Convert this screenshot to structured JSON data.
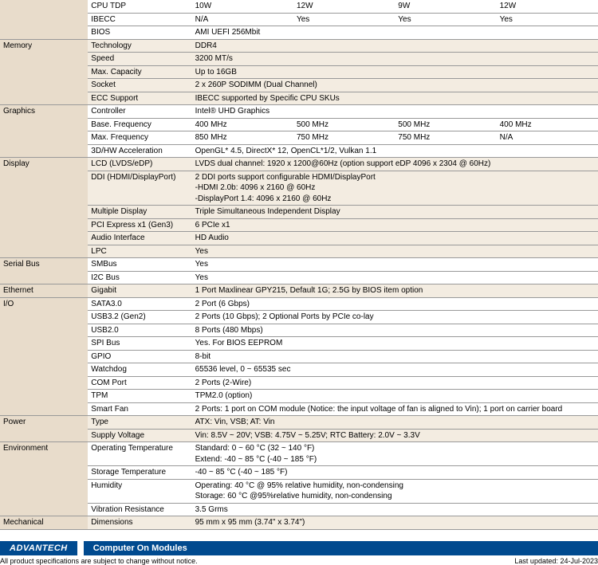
{
  "top_rows": [
    {
      "sub": "CPU TDP",
      "vals": [
        "10W",
        "12W",
        "9W",
        "12W"
      ]
    },
    {
      "sub": "IBECC",
      "vals": [
        "N/A",
        "Yes",
        "Yes",
        "Yes"
      ]
    },
    {
      "sub": "BIOS",
      "span": "AMI UEFI 256Mbit"
    }
  ],
  "memory": {
    "label": "Memory",
    "rows": [
      {
        "sub": "Technology",
        "span": "DDR4"
      },
      {
        "sub": "Speed",
        "span": "3200 MT/s"
      },
      {
        "sub": "Max. Capacity",
        "span": "Up to 16GB"
      },
      {
        "sub": "Socket",
        "span": "2 x 260P SODIMM (Dual Channel)"
      },
      {
        "sub": "ECC Support",
        "span": "IBECC supported by Specific CPU SKUs"
      }
    ]
  },
  "graphics": {
    "label": "Graphics",
    "rows": [
      {
        "sub": "Controller",
        "span": "Intel® UHD Graphics"
      },
      {
        "sub": "Base. Frequency",
        "vals": [
          "400 MHz",
          "500 MHz",
          "500 MHz",
          "400 MHz"
        ]
      },
      {
        "sub": "Max. Frequency",
        "vals": [
          "850 MHz",
          "750 MHz",
          "750 MHz",
          "N/A"
        ]
      },
      {
        "sub": "3D/HW Acceleration",
        "span": "OpenGL* 4.5, DirectX* 12, OpenCL*1/2, Vulkan 1.1"
      }
    ]
  },
  "display": {
    "label": "Display",
    "rows": [
      {
        "sub": "LCD (LVDS/eDP)",
        "span": "LVDS dual channel: 1920 x 1200@60Hz (option support eDP 4096 x 2304 @ 60Hz)"
      },
      {
        "sub": "DDI (HDMI/DisplayPort)",
        "span": "2 DDI ports support configurable HDMI/DisplayPort\n-HDMI 2.0b: 4096 x 2160 @ 60Hz\n-DisplayPort 1.4: 4096 x 2160 @ 60Hz"
      },
      {
        "sub": "Multiple Display",
        "span": "Triple Simultaneous Independent Display"
      },
      {
        "sub": "PCI Express x1 (Gen3)",
        "span": "6 PCIe x1"
      },
      {
        "sub": "Audio Interface",
        "span": "HD Audio"
      },
      {
        "sub": "LPC",
        "span": "Yes"
      }
    ]
  },
  "serial": {
    "label": "Serial Bus",
    "rows": [
      {
        "sub": "SMBus",
        "span": "Yes"
      },
      {
        "sub": "I2C Bus",
        "span": "Yes"
      }
    ]
  },
  "ethernet": {
    "label": "Ethernet",
    "rows": [
      {
        "sub": "Gigabit",
        "span": "1 Port Maxlinear GPY215, Default 1G; 2.5G by BIOS item option"
      }
    ]
  },
  "io": {
    "label": "I/O",
    "rows": [
      {
        "sub": "SATA3.0",
        "span": "2 Port (6 Gbps)"
      },
      {
        "sub": "USB3.2 (Gen2)",
        "span": "2 Ports (10 Gbps); 2 Optional Ports by PCIe co-lay"
      },
      {
        "sub": "USB2.0",
        "span": "8 Ports (480 Mbps)"
      },
      {
        "sub": "SPI Bus",
        "span": "Yes. For BIOS EEPROM"
      },
      {
        "sub": "GPIO",
        "span": "8-bit"
      },
      {
        "sub": "Watchdog",
        "span": "65536 level, 0 ~ 65535 sec"
      },
      {
        "sub": "COM Port",
        "span": "2 Ports (2-Wire)"
      },
      {
        "sub": "TPM",
        "span": "TPM2.0 (option)"
      },
      {
        "sub": "Smart Fan",
        "span": "2 Ports: 1 port on COM module (Notice: the input voltage of fan is aligned to Vin); 1 port on carrier board"
      }
    ]
  },
  "power": {
    "label": "Power",
    "rows": [
      {
        "sub": "Type",
        "span": "ATX: Vin, VSB; AT: Vin"
      },
      {
        "sub": "Supply Voltage",
        "span": "Vin: 8.5V ~ 20V; VSB: 4.75V ~ 5.25V; RTC Battery: 2.0V ~ 3.3V"
      }
    ]
  },
  "env": {
    "label": "Environment",
    "rows": [
      {
        "sub": "Operating Temperature",
        "span": "Standard: 0 ~ 60 °C (32 ~ 140 °F)\nExtend: -40 ~ 85 °C (-40 ~ 185 °F)"
      },
      {
        "sub": "Storage Temperature",
        "span": "-40 ~ 85 °C (-40 ~ 185 °F)"
      },
      {
        "sub": "Humidity",
        "span": "Operating: 40 °C @ 95% relative humidity, non-condensing\nStorage: 60 °C @95%relative humidity, non-condensing"
      },
      {
        "sub": "Vibration Resistance",
        "span": "3.5 Grms"
      }
    ]
  },
  "mech": {
    "label": "Mechanical",
    "rows": [
      {
        "sub": "Dimensions",
        "span": "95 mm x 95 mm (3.74\" x 3.74\")"
      }
    ]
  },
  "footer": {
    "brand": "ADVANTECH",
    "title": "Computer On Modules",
    "notice": "All product specifications are subject to change without notice.",
    "updated": "Last updated: 24-Jul-2023"
  },
  "col_widths": {
    "cat": 110,
    "sub": 130,
    "val": 127
  }
}
